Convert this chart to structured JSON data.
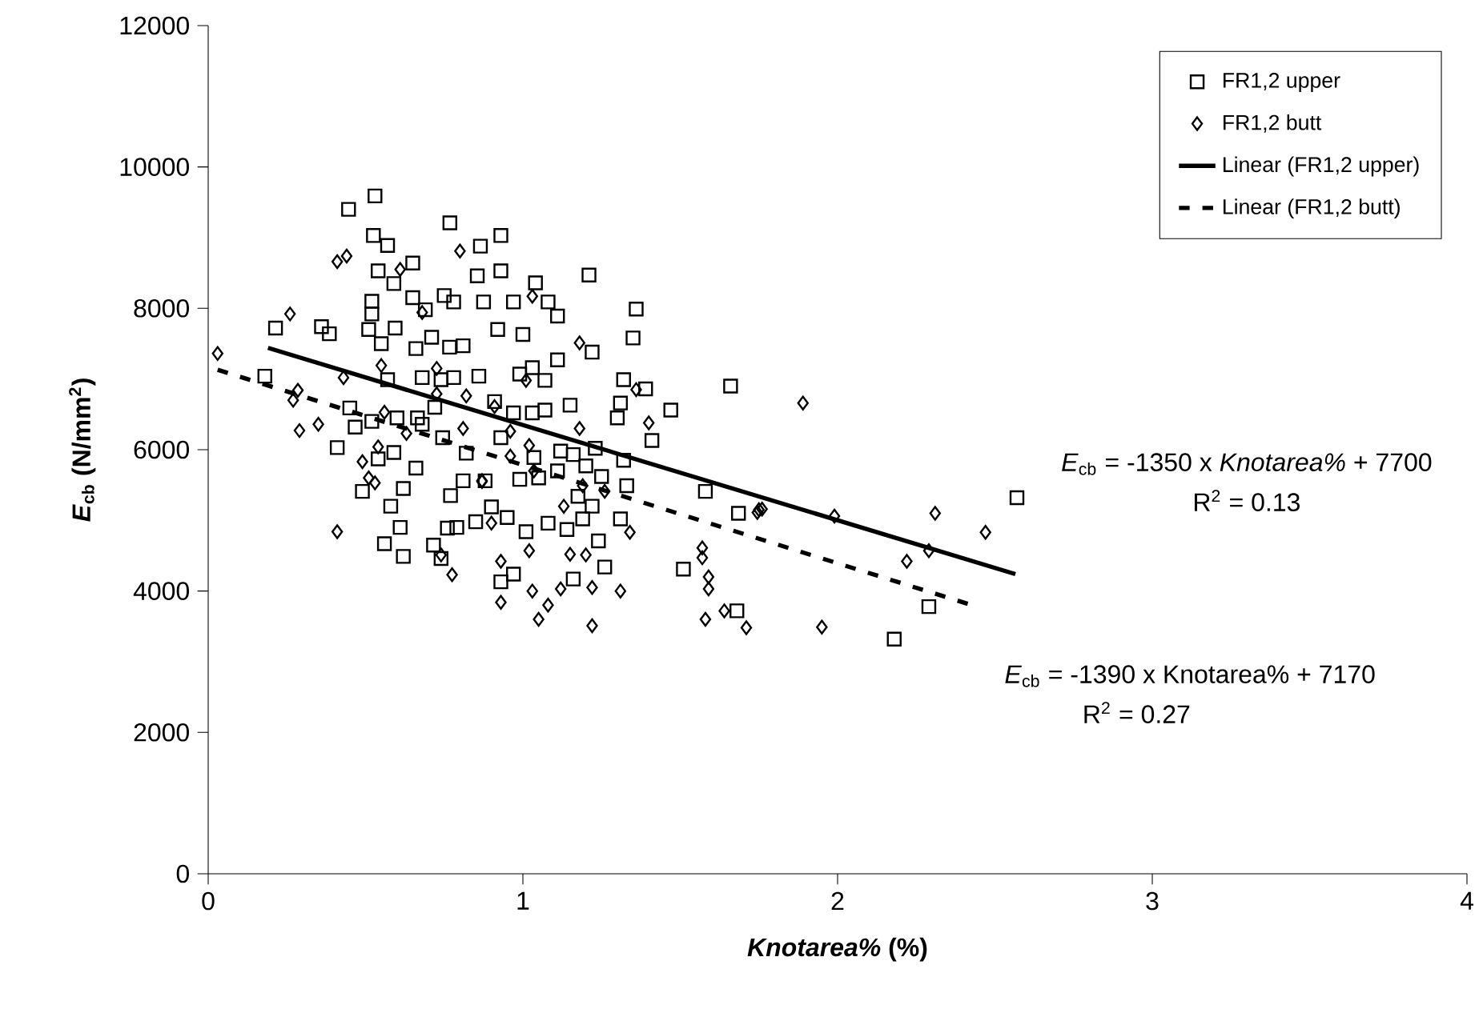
{
  "chart_data": {
    "type": "scatter",
    "xlabel": "*Knotarea%*      (%)",
    "ylabel": "*E*$_{cb}$ (N/mm$^{2}$)",
    "xlim": [
      0,
      4
    ],
    "xticks": [
      0,
      1,
      2,
      3,
      4
    ],
    "ylim": [
      0,
      12000
    ],
    "yticks": [
      0,
      2000,
      4000,
      6000,
      8000,
      10000,
      12000
    ],
    "grid": false,
    "legend": "top right",
    "series": [
      {
        "name": "FR1,2 upper",
        "color": "#000000",
        "marker": "square",
        "x": [
          0.53,
          0.446,
          0.768,
          0.525,
          0.57,
          0.865,
          0.65,
          0.54,
          0.855,
          0.59,
          0.65,
          0.75,
          0.52,
          0.78,
          0.875,
          0.52,
          0.69,
          0.214,
          0.36,
          0.385,
          0.51,
          0.594,
          0.55,
          0.66,
          0.71,
          0.767,
          0.81,
          0.18,
          0.57,
          0.68,
          0.74,
          0.78,
          0.86,
          0.45,
          0.6,
          0.665,
          0.72,
          0.467,
          0.52,
          0.68,
          0.745,
          0.41,
          0.59,
          0.54,
          0.66,
          0.82,
          0.81,
          0.62,
          0.49,
          0.88,
          0.77,
          0.58,
          0.61,
          0.76,
          0.79,
          0.85,
          0.56,
          0.62,
          0.716,
          0.74,
          0.93,
          0.93,
          1.04,
          1.21,
          0.97,
          1.08,
          1.11,
          1.36,
          0.92,
          1.0,
          1.35,
          1.22,
          1.11,
          1.03,
          0.99,
          1.07,
          1.32,
          1.39,
          1.66,
          0.91,
          0.97,
          1.03,
          1.07,
          1.15,
          1.31,
          1.3,
          1.47,
          1.41,
          0.93,
          1.035,
          1.12,
          1.16,
          1.23,
          1.2,
          1.11,
          1.32,
          0.99,
          1.05,
          1.25,
          1.33,
          1.58,
          1.175,
          1.22,
          0.9,
          0.95,
          1.08,
          1.14,
          1.31,
          1.19,
          1.685,
          1.01,
          1.24,
          1.26,
          1.51,
          0.97,
          0.93,
          1.16,
          1.68,
          2.57,
          2.29,
          2.18
        ],
        "values": [
          9590,
          9400,
          9210,
          9030,
          8890,
          8880,
          8640,
          8530,
          8460,
          8350,
          8150,
          8180,
          8100,
          8090,
          8090,
          7920,
          7980,
          7720,
          7740,
          7640,
          7700,
          7720,
          7500,
          7430,
          7590,
          7450,
          7470,
          7040,
          6990,
          7020,
          6990,
          7020,
          7040,
          6590,
          6450,
          6450,
          6600,
          6320,
          6400,
          6360,
          6170,
          6030,
          5960,
          5870,
          5740,
          5950,
          5560,
          5450,
          5410,
          5560,
          5350,
          5200,
          4900,
          4890,
          4900,
          4980,
          4670,
          4490,
          4650,
          4460,
          9030,
          8530,
          8360,
          8470,
          8090,
          8090,
          7890,
          7990,
          7700,
          7630,
          7580,
          7380,
          7270,
          7160,
          7070,
          6980,
          6990,
          6860,
          6900,
          6680,
          6520,
          6520,
          6560,
          6630,
          6660,
          6450,
          6560,
          6130,
          6170,
          5890,
          5980,
          5930,
          6020,
          5770,
          5700,
          5850,
          5580,
          5600,
          5620,
          5490,
          5410,
          5340,
          5200,
          5190,
          5040,
          4960,
          4870,
          5020,
          5020,
          5100,
          4840,
          4710,
          4340,
          4310,
          4240,
          4130,
          4170,
          3720,
          5320,
          3780,
          3320
        ]
      },
      {
        "name": "FR1,2 butt",
        "color": "#000000",
        "marker": "diamond",
        "x": [
          0.8,
          0.41,
          0.44,
          0.61,
          0.26,
          0.68,
          0.03,
          0.43,
          0.55,
          0.726,
          0.285,
          0.27,
          0.726,
          0.82,
          0.29,
          0.35,
          0.56,
          0.63,
          0.81,
          0.54,
          0.49,
          0.51,
          0.53,
          0.87,
          0.41,
          0.74,
          0.775,
          1.03,
          1.18,
          1.01,
          1.36,
          1.4,
          0.91,
          0.96,
          1.18,
          1.02,
          0.96,
          1.035,
          1.19,
          1.26,
          0.87,
          1.13,
          0.9,
          1.34,
          1.02,
          1.15,
          1.2,
          0.93,
          1.22,
          1.31,
          1.12,
          1.03,
          0.93,
          1.08,
          1.05,
          1.22,
          1.57,
          1.57,
          1.59,
          1.59,
          1.64,
          1.58,
          1.71,
          1.75,
          1.89,
          1.745,
          1.76,
          1.99,
          2.31,
          2.47,
          2.29,
          2.22,
          1.95
        ],
        "values": [
          8810,
          8660,
          8740,
          8550,
          7920,
          7940,
          7360,
          7020,
          7190,
          7150,
          6840,
          6700,
          6790,
          6760,
          6270,
          6360,
          6530,
          6230,
          6300,
          6040,
          5830,
          5600,
          5530,
          5550,
          4840,
          4510,
          4230,
          8170,
          7510,
          6980,
          6850,
          6380,
          6610,
          6260,
          6300,
          6060,
          5910,
          5700,
          5490,
          5410,
          5560,
          5200,
          4960,
          4830,
          4570,
          4520,
          4510,
          4420,
          4050,
          4000,
          4030,
          4000,
          3840,
          3800,
          3600,
          3510,
          4610,
          4470,
          4200,
          4030,
          3720,
          3600,
          3480,
          5150,
          6660,
          5110,
          5160,
          5060,
          5100,
          4830,
          4570,
          4420,
          3490
        ]
      },
      {
        "name": "Linear (FR1,2 upper)",
        "type": "line",
        "color": "#000000",
        "marker": "none",
        "line_style": "solid",
        "x": [
          0.19,
          2.565
        ],
        "values": [
          7440,
          4240
        ]
      },
      {
        "name": "Linear (FR1,2 butt)",
        "type": "line",
        "color": "#000000",
        "marker": "none",
        "line_style": "dashed",
        "x": [
          0.03,
          2.42
        ],
        "values": [
          7130,
          3810
        ]
      }
    ],
    "annotations": [
      "*E*$_{cb}$ = -1350 x *Knotarea%* + 7700",
      "R$^{2}$ = 0.13",
      "*E*$_{cb}$ = -1390 x Knotarea% + 7170",
      "R$^{2}$ = 0.27"
    ]
  }
}
